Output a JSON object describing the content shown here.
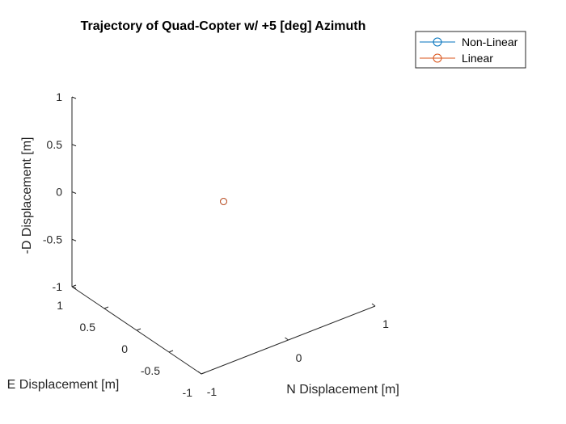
{
  "chart_data": {
    "type": "scatter",
    "projection": "3d",
    "title": "Trajectory of Quad-Copter w/ +5 [deg] Azimuth",
    "xlabel": "N Displacement [m]",
    "ylabel": "E Displacement [m]",
    "zlabel": "-D Displacement [m]",
    "xlim": [
      -1,
      1
    ],
    "ylim": [
      -1,
      1
    ],
    "zlim": [
      -1,
      1
    ],
    "x_ticks": [
      "-1",
      "0",
      "1"
    ],
    "y_ticks": [
      "-1",
      "-0.5",
      "0",
      "0.5",
      "1"
    ],
    "z_ticks": [
      "-1",
      "-0.5",
      "0",
      "0.5",
      "1"
    ],
    "grid": false,
    "legend_position": "top-right",
    "series": [
      {
        "name": "Non-Linear",
        "color": "#0072BD",
        "marker": "circle",
        "points": [
          {
            "x": 0,
            "y": 0,
            "z": 0
          }
        ]
      },
      {
        "name": "Linear",
        "color": "#D95319",
        "marker": "circle",
        "points": [
          {
            "x": 0,
            "y": 0,
            "z": 0
          }
        ]
      }
    ]
  }
}
